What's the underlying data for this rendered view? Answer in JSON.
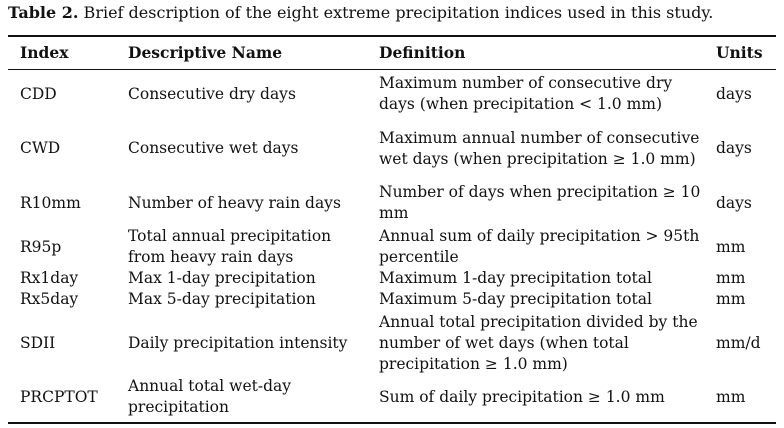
{
  "caption": {
    "label": "Table 2.",
    "text": " Brief description of the eight extreme precipitation indices used in this study."
  },
  "table": {
    "headers": [
      "Index",
      "Descriptive Name",
      "Definition",
      "Units"
    ],
    "rows": [
      {
        "index": "CDD",
        "name": "Consecutive dry days",
        "definition": "Maximum number of consecutive dry days (when precipitation < 1.0 mm)",
        "units": "days"
      },
      {
        "index": "CWD",
        "name": "Consecutive wet days",
        "definition": "Maximum annual number of consecutive wet days (when precipitation ≥ 1.0 mm)",
        "units": "days"
      },
      {
        "index": "R10mm",
        "name": "Number of heavy rain days",
        "definition": "Number of days when precipitation ≥ 10 mm",
        "units": "days"
      },
      {
        "index": "R95p",
        "name": "Total annual precipitation from heavy rain days",
        "definition": "Annual sum of daily precipitation > 95th percentile",
        "units": "mm"
      },
      {
        "index": "Rx1day",
        "name": "Max 1-day precipitation",
        "definition": "Maximum 1-day precipitation total",
        "units": "mm"
      },
      {
        "index": "Rx5day",
        "name": "Max 5-day precipitation",
        "definition": "Maximum 5-day precipitation total",
        "units": "mm"
      },
      {
        "index": "SDII",
        "name": "Daily precipitation intensity",
        "definition": "Annual total precipitation divided by the number of wet days (when total precipitation ≥ 1.0 mm)",
        "units": "mm/d"
      },
      {
        "index": "PRCPTOT",
        "name": "Annual total wet-day precipitation",
        "definition": "Sum of daily precipitation ≥ 1.0 mm",
        "units": "mm"
      }
    ]
  }
}
